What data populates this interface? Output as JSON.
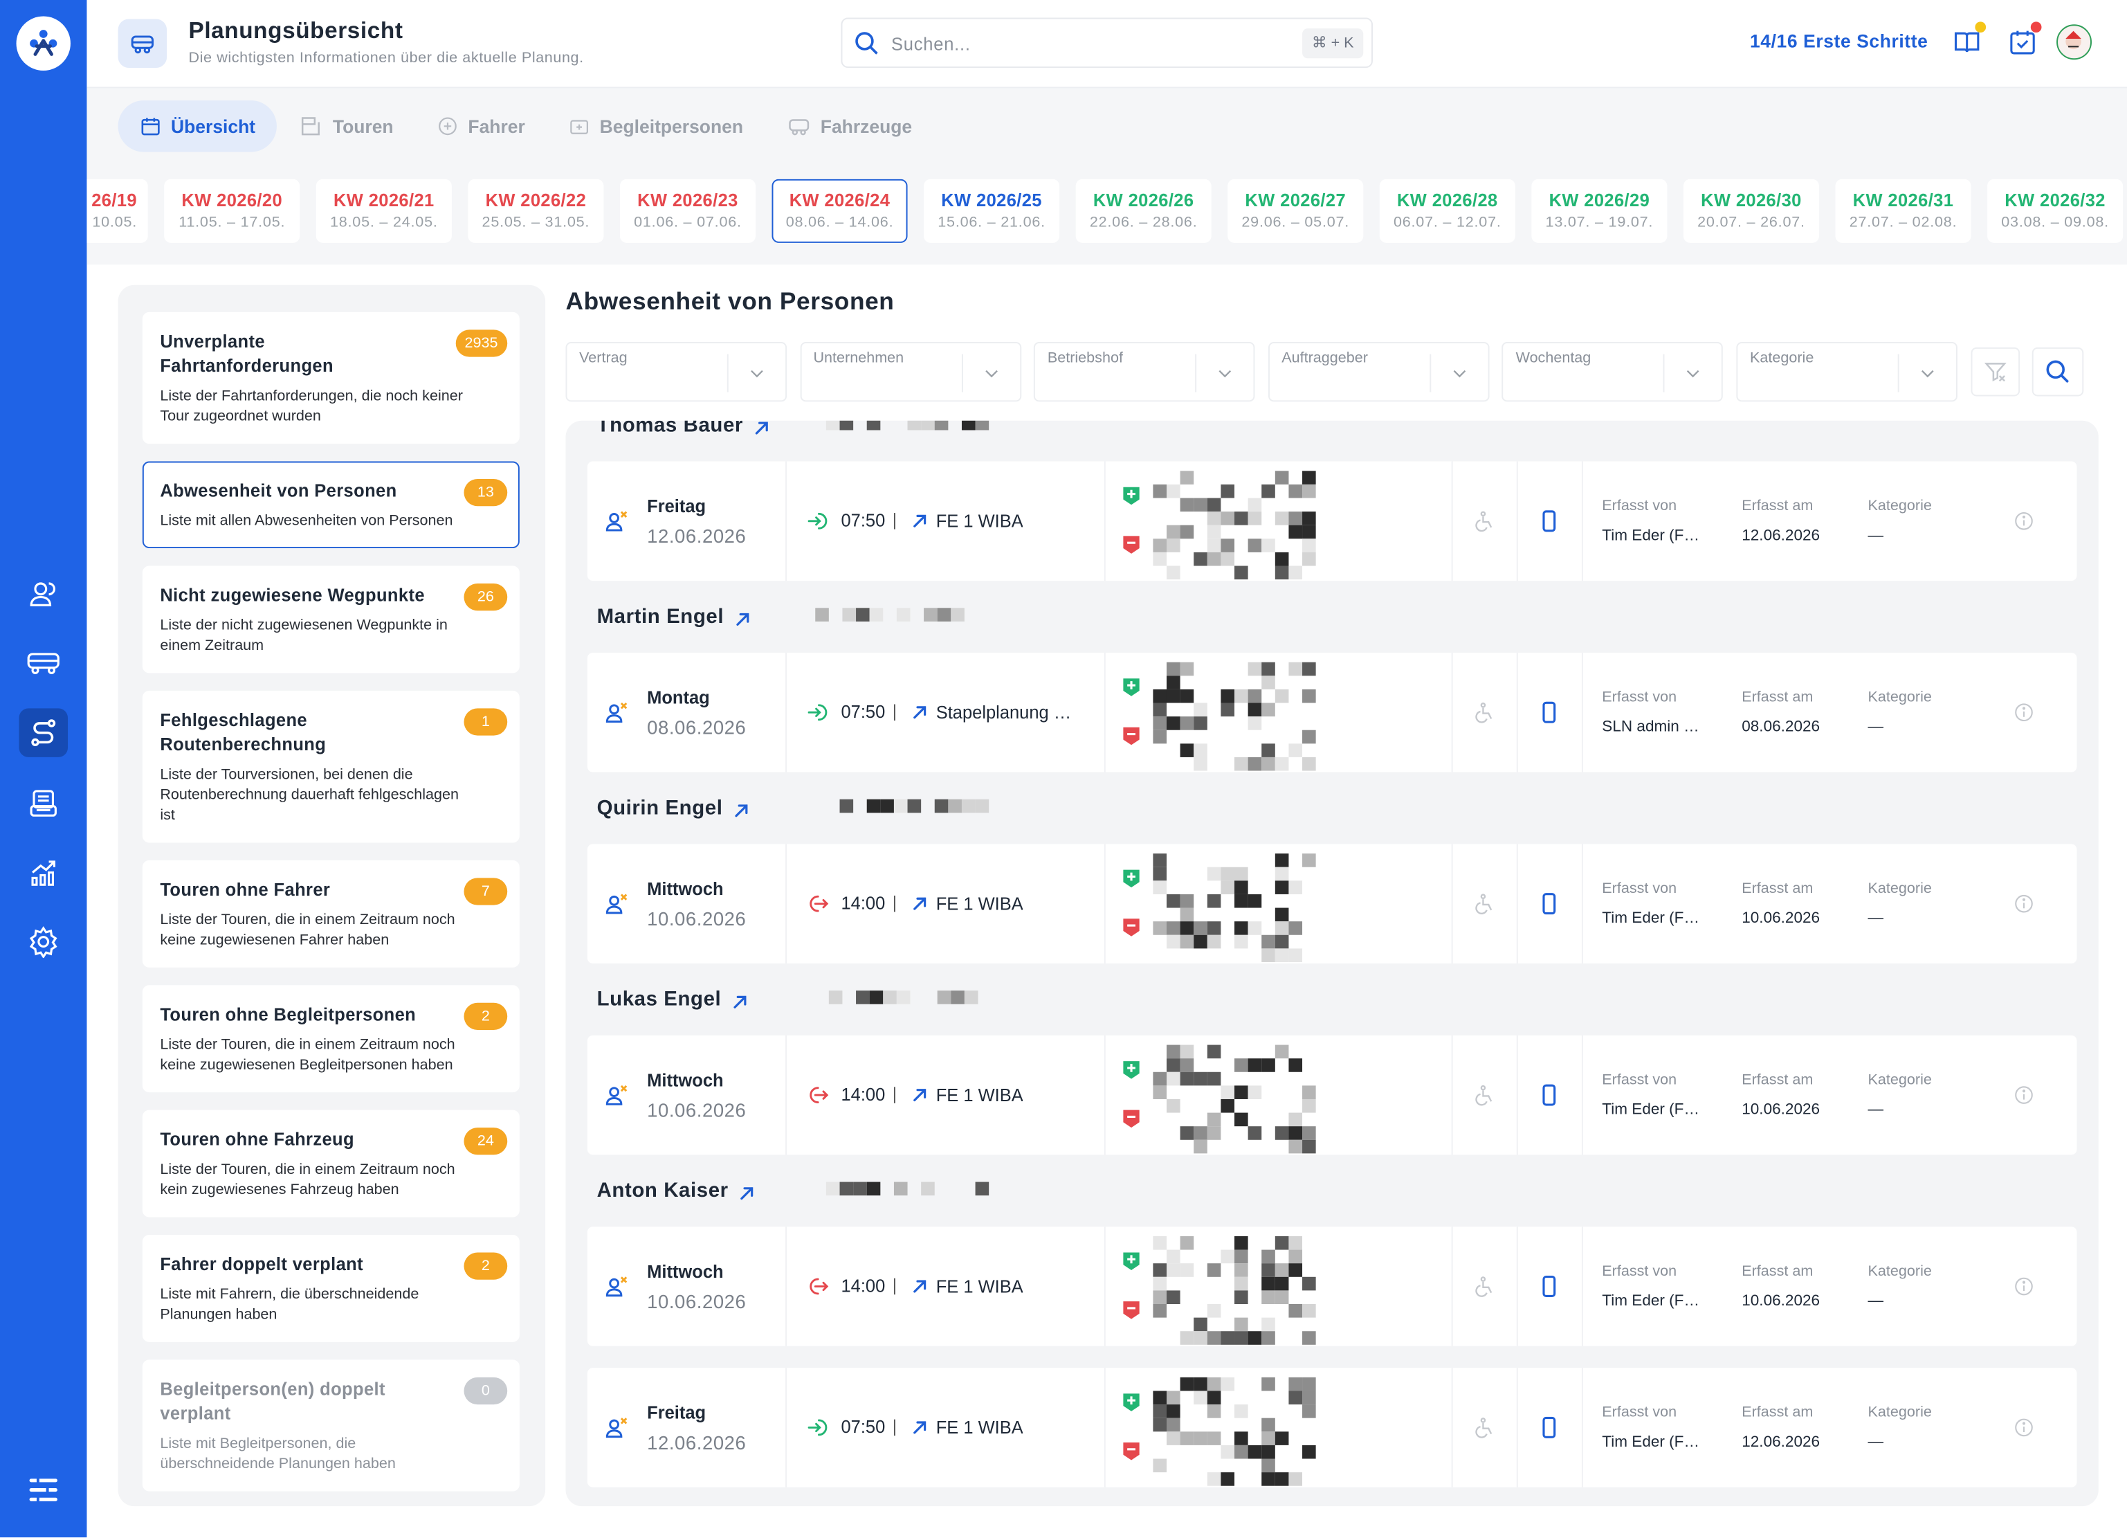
{
  "header": {
    "title": "Planungsübersicht",
    "subtitle": "Die wichtigsten Informationen über die aktuelle Planung.",
    "search_placeholder": "Suchen...",
    "search_shortcut": "⌘ + K",
    "onboarding": "14/16 Erste Schritte"
  },
  "tabs": [
    {
      "label": "Übersicht",
      "active": true
    },
    {
      "label": "Touren",
      "active": false
    },
    {
      "label": "Fahrer",
      "active": false
    },
    {
      "label": "Begleitpersonen",
      "active": false
    },
    {
      "label": "Fahrzeuge",
      "active": false
    }
  ],
  "weeks": [
    {
      "label": "26/19",
      "range": "10.05.",
      "status": "past",
      "selected": false
    },
    {
      "label": "KW 2026/20",
      "range": "11.05. – 17.05.",
      "status": "past",
      "selected": false
    },
    {
      "label": "KW 2026/21",
      "range": "18.05. – 24.05.",
      "status": "past",
      "selected": false
    },
    {
      "label": "KW 2026/22",
      "range": "25.05. – 31.05.",
      "status": "past",
      "selected": false
    },
    {
      "label": "KW 2026/23",
      "range": "01.06. – 07.06.",
      "status": "past",
      "selected": false
    },
    {
      "label": "KW 2026/24",
      "range": "08.06. – 14.06.",
      "status": "past",
      "selected": true
    },
    {
      "label": "KW 2026/25",
      "range": "15.06. – 21.06.",
      "status": "current",
      "selected": false
    },
    {
      "label": "KW 2026/26",
      "range": "22.06. – 28.06.",
      "status": "future",
      "selected": false
    },
    {
      "label": "KW 2026/27",
      "range": "29.06. – 05.07.",
      "status": "future",
      "selected": false
    },
    {
      "label": "KW 2026/28",
      "range": "06.07. – 12.07.",
      "status": "future",
      "selected": false
    },
    {
      "label": "KW 2026/29",
      "range": "13.07. – 19.07.",
      "status": "future",
      "selected": false
    },
    {
      "label": "KW 2026/30",
      "range": "20.07. – 26.07.",
      "status": "future",
      "selected": false
    },
    {
      "label": "KW 2026/31",
      "range": "27.07. – 02.08.",
      "status": "future",
      "selected": false
    },
    {
      "label": "KW 2026/32",
      "range": "03.08. – 09.08.",
      "status": "future",
      "selected": false
    }
  ],
  "sidebar": [
    {
      "title": "Unverplante Fahrtanforderungen",
      "description": "Liste der Fahrtanforderungen, die noch keiner Tour zugeordnet wurden",
      "count": 2935,
      "selected": false,
      "disabled": false
    },
    {
      "title": "Abwesenheit von Personen",
      "description": "Liste mit allen Abwesenheiten von Personen",
      "count": 13,
      "selected": true,
      "disabled": false
    },
    {
      "title": "Nicht zugewiesene Wegpunkte",
      "description": "Liste der nicht zugewiesenen Wegpunkte in einem Zeitraum",
      "count": 26,
      "selected": false,
      "disabled": false
    },
    {
      "title": "Fehlgeschlagene Routenberechnung",
      "description": "Liste der Tourversionen, bei denen die Routenberechnung dauerhaft fehlgeschlagen ist",
      "count": 1,
      "selected": false,
      "disabled": false
    },
    {
      "title": "Touren ohne Fahrer",
      "description": "Liste der Touren, die in einem Zeitraum noch keine zugewiesenen Fahrer haben",
      "count": 7,
      "selected": false,
      "disabled": false
    },
    {
      "title": "Touren ohne Begleitpersonen",
      "description": "Liste der Touren, die in einem Zeitraum noch keine zugewiesenen Begleitpersonen haben",
      "count": 2,
      "selected": false,
      "disabled": false
    },
    {
      "title": "Touren ohne Fahrzeug",
      "description": "Liste der Touren, die in einem Zeitraum noch kein zugewiesenes Fahrzeug haben",
      "count": 24,
      "selected": false,
      "disabled": false
    },
    {
      "title": "Fahrer doppelt verplant",
      "description": "Liste mit Fahrern, die überschneidende Planungen haben",
      "count": 2,
      "selected": false,
      "disabled": false
    },
    {
      "title": "Begleitperson(en) doppelt verplant",
      "description": "Liste mit Begleitpersonen, die überschneidende Planungen haben",
      "count": 0,
      "selected": false,
      "disabled": true
    }
  ],
  "panel": {
    "title": "Abwesenheit von Personen",
    "filters": [
      "Vertrag",
      "Unternehmen",
      "Betriebshof",
      "Auftraggeber",
      "Wochentag",
      "Kategorie"
    ],
    "columns": {
      "created_by": "Erfasst von",
      "created_at": "Erfasst am",
      "category": "Kategorie"
    },
    "persons": [
      {
        "name": "Thomas Bauer",
        "entries": [
          {
            "day": "Freitag",
            "date": "12.06.2026",
            "direction": "in",
            "time": "07:50",
            "tour": "FE 1 WIBA",
            "created_by": "Tim Eder (F…",
            "created_at": "12.06.2026",
            "category": "—"
          }
        ]
      },
      {
        "name": "Martin Engel",
        "entries": [
          {
            "day": "Montag",
            "date": "08.06.2026",
            "direction": "in",
            "time": "07:50",
            "tour": "Stapelplanung …",
            "created_by": "SLN admin …",
            "created_at": "08.06.2026",
            "category": "—"
          }
        ]
      },
      {
        "name": "Quirin Engel",
        "entries": [
          {
            "day": "Mittwoch",
            "date": "10.06.2026",
            "direction": "out",
            "time": "14:00",
            "tour": "FE 1 WIBA",
            "created_by": "Tim Eder (F…",
            "created_at": "10.06.2026",
            "category": "—"
          }
        ]
      },
      {
        "name": "Lukas Engel",
        "entries": [
          {
            "day": "Mittwoch",
            "date": "10.06.2026",
            "direction": "out",
            "time": "14:00",
            "tour": "FE 1 WIBA",
            "created_by": "Tim Eder (F…",
            "created_at": "10.06.2026",
            "category": "—"
          }
        ]
      },
      {
        "name": "Anton Kaiser",
        "entries": [
          {
            "day": "Mittwoch",
            "date": "10.06.2026",
            "direction": "out",
            "time": "14:00",
            "tour": "FE 1 WIBA",
            "created_by": "Tim Eder (F…",
            "created_at": "10.06.2026",
            "category": "—"
          },
          {
            "day": "Freitag",
            "date": "12.06.2026",
            "direction": "in",
            "time": "07:50",
            "tour": "FE 1 WIBA",
            "created_by": "Tim Eder (F…",
            "created_at": "12.06.2026",
            "category": "—"
          }
        ]
      }
    ]
  }
}
